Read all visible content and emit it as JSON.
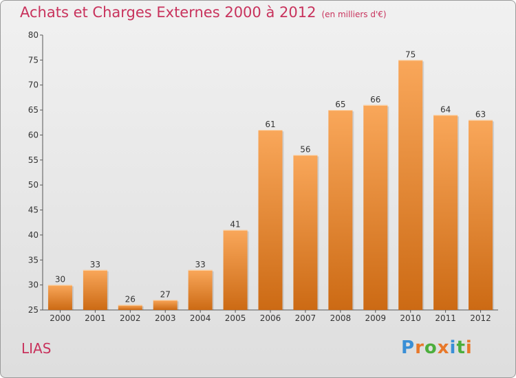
{
  "chart_data": {
    "type": "bar",
    "title": "Achats et Charges Externes 2000 à 2012",
    "subtitle": "(en milliers d'€)",
    "categories": [
      "2000",
      "2001",
      "2002",
      "2003",
      "2004",
      "2005",
      "2006",
      "2007",
      "2008",
      "2009",
      "2010",
      "2011",
      "2012"
    ],
    "values": [
      30,
      33,
      26,
      27,
      33,
      41,
      61,
      56,
      65,
      66,
      75,
      64,
      63
    ],
    "ylim": [
      25,
      80
    ],
    "yticks": [
      25,
      30,
      35,
      40,
      45,
      50,
      55,
      60,
      65,
      70,
      75,
      80
    ],
    "grid": false,
    "bar_color_top": "#f9a75a",
    "bar_color_bottom": "#cc6a14",
    "title_color": "#c8325c"
  },
  "footer": {
    "place": "LIAS",
    "logo": "Proxiti",
    "logo_colors": [
      "#3a8fd6",
      "#e8782a",
      "#4cae3c",
      "#e8782a",
      "#3a8fd6",
      "#4cae3c",
      "#e8782a"
    ]
  }
}
